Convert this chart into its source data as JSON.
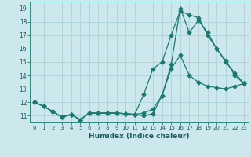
{
  "title": "",
  "xlabel": "Humidex (Indice chaleur)",
  "bg_color": "#cce8ec",
  "line_color": "#1a7a6e",
  "grid_color": "#a8cdd4",
  "xlim": [
    -0.5,
    23.5
  ],
  "ylim": [
    10.5,
    19.5
  ],
  "xticks": [
    0,
    1,
    2,
    3,
    4,
    5,
    6,
    7,
    8,
    9,
    10,
    11,
    12,
    13,
    14,
    15,
    16,
    17,
    18,
    19,
    20,
    21,
    22,
    23
  ],
  "yticks": [
    11,
    12,
    13,
    14,
    15,
    16,
    17,
    18,
    19
  ],
  "series1_x": [
    0,
    1,
    2,
    3,
    4,
    5,
    6,
    7,
    8,
    9,
    10,
    11,
    12,
    13,
    14,
    15,
    16,
    17,
    18,
    19,
    20,
    21,
    22,
    23
  ],
  "series1_y": [
    12.0,
    11.7,
    11.3,
    10.9,
    11.1,
    10.7,
    11.2,
    11.2,
    11.2,
    11.2,
    11.15,
    11.1,
    12.6,
    14.5,
    15.0,
    17.0,
    18.8,
    18.5,
    18.3,
    17.0,
    16.0,
    15.0,
    14.2,
    13.4
  ],
  "series2_x": [
    0,
    1,
    2,
    3,
    4,
    5,
    6,
    7,
    8,
    9,
    10,
    11,
    12,
    13,
    14,
    15,
    16,
    17,
    18,
    19,
    20,
    21,
    22,
    23
  ],
  "series2_y": [
    12.0,
    11.7,
    11.3,
    10.9,
    11.1,
    10.7,
    11.2,
    11.2,
    11.2,
    11.2,
    11.15,
    11.1,
    11.2,
    11.5,
    12.5,
    14.5,
    15.5,
    14.0,
    13.5,
    13.2,
    13.1,
    13.0,
    13.2,
    13.4
  ],
  "series3_x": [
    0,
    1,
    2,
    3,
    4,
    5,
    6,
    7,
    8,
    9,
    10,
    11,
    12,
    13,
    14,
    15,
    16,
    17,
    18,
    19,
    20,
    21,
    22,
    23
  ],
  "series3_y": [
    12.0,
    11.7,
    11.3,
    10.9,
    11.1,
    10.7,
    11.2,
    11.2,
    11.2,
    11.2,
    11.15,
    11.1,
    11.0,
    11.15,
    12.5,
    14.8,
    19.0,
    17.2,
    18.1,
    17.2,
    16.0,
    15.1,
    14.0,
    13.4
  ]
}
